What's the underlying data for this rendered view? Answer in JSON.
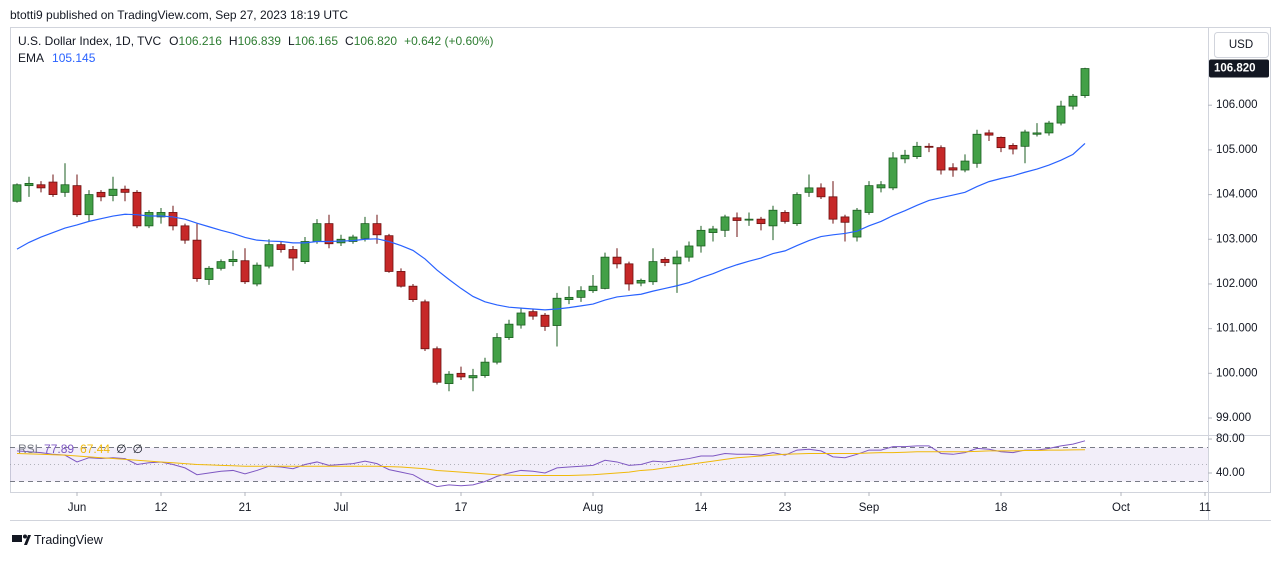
{
  "header": "btotti9 published on TradingView.com, Sep 27, 2023 18:19 UTC",
  "footer": "TradingView",
  "chart_data": [
    {
      "type": "candlestick",
      "legend": {
        "title": "U.S. Dollar Index, 1D, TVC",
        "ohlc": [
          [
            "O",
            "106.216"
          ],
          [
            "H",
            "106.839"
          ],
          [
            "L",
            "106.165"
          ],
          [
            "C",
            "106.820"
          ]
        ],
        "change": "+0.642 (+0.60%)",
        "ema_title": "EMA",
        "ema_value": "105.145"
      },
      "currency": "USD",
      "last_value_label": "106.820",
      "categories": [
        "2023-05-25",
        "2023-05-26",
        "2023-05-29",
        "2023-05-30",
        "2023-05-31",
        "2023-06-01",
        "2023-06-02",
        "2023-06-05",
        "2023-06-06",
        "2023-06-07",
        "2023-06-08",
        "2023-06-09",
        "2023-06-12",
        "2023-06-13",
        "2023-06-14",
        "2023-06-15",
        "2023-06-16",
        "2023-06-19",
        "2023-06-20",
        "2023-06-21",
        "2023-06-22",
        "2023-06-23",
        "2023-06-26",
        "2023-06-27",
        "2023-06-28",
        "2023-06-29",
        "2023-06-30",
        "2023-07-03",
        "2023-07-04",
        "2023-07-05",
        "2023-07-06",
        "2023-07-07",
        "2023-07-10",
        "2023-07-11",
        "2023-07-12",
        "2023-07-13",
        "2023-07-14",
        "2023-07-17",
        "2023-07-18",
        "2023-07-19",
        "2023-07-20",
        "2023-07-21",
        "2023-07-24",
        "2023-07-25",
        "2023-07-26",
        "2023-07-27",
        "2023-07-28",
        "2023-07-31",
        "2023-08-01",
        "2023-08-02",
        "2023-08-03",
        "2023-08-04",
        "2023-08-07",
        "2023-08-08",
        "2023-08-09",
        "2023-08-10",
        "2023-08-11",
        "2023-08-14",
        "2023-08-15",
        "2023-08-16",
        "2023-08-17",
        "2023-08-18",
        "2023-08-21",
        "2023-08-22",
        "2023-08-23",
        "2023-08-24",
        "2023-08-25",
        "2023-08-28",
        "2023-08-29",
        "2023-08-30",
        "2023-08-31",
        "2023-09-01",
        "2023-09-04",
        "2023-09-05",
        "2023-09-06",
        "2023-09-07",
        "2023-09-08",
        "2023-09-11",
        "2023-09-12",
        "2023-09-13",
        "2023-09-14",
        "2023-09-15",
        "2023-09-18",
        "2023-09-19",
        "2023-09-20",
        "2023-09-21",
        "2023-09-22",
        "2023-09-25",
        "2023-09-26",
        "2023-09-27"
      ],
      "series": [
        {
          "up_color": "#43a047",
          "down_color": "#c62828",
          "up_border": "#1b5e20",
          "down_border": "#6d1010",
          "open": [
            103.85,
            104.2,
            104.22,
            104.28,
            104.05,
            104.2,
            103.55,
            104.05,
            103.98,
            104.12,
            104.05,
            103.3,
            103.5,
            103.6,
            103.3,
            102.98,
            102.1,
            102.35,
            102.5,
            102.52,
            102.0,
            102.4,
            102.88,
            102.77,
            102.5,
            102.95,
            103.35,
            102.92,
            102.95,
            103.02,
            103.35,
            103.08,
            102.28,
            101.95,
            101.6,
            100.55,
            99.77,
            100.0,
            99.9,
            99.95,
            100.25,
            100.8,
            101.08,
            101.38,
            101.3,
            101.07,
            101.65,
            101.7,
            101.85,
            101.9,
            102.6,
            102.45,
            102.02,
            102.05,
            102.55,
            102.45,
            102.6,
            102.85,
            103.15,
            103.2,
            103.48,
            103.43,
            103.45,
            103.3,
            103.6,
            103.35,
            104.05,
            104.15,
            103.95,
            103.5,
            103.05,
            103.6,
            104.15,
            104.15,
            104.8,
            104.85,
            105.08,
            105.05,
            104.6,
            104.55,
            104.7,
            105.38,
            105.28,
            105.1,
            105.08,
            105.35,
            105.38,
            105.6,
            105.98,
            106.216
          ],
          "high": [
            104.25,
            104.4,
            104.3,
            104.45,
            104.7,
            104.45,
            104.1,
            104.1,
            104.4,
            104.2,
            104.1,
            103.65,
            103.7,
            103.75,
            103.35,
            103.35,
            102.4,
            102.55,
            102.75,
            102.8,
            102.48,
            103.0,
            102.95,
            102.85,
            103.05,
            103.45,
            103.55,
            103.1,
            103.1,
            103.5,
            103.55,
            103.12,
            102.35,
            102.0,
            101.65,
            100.6,
            100.05,
            100.15,
            100.1,
            100.35,
            100.9,
            101.2,
            101.45,
            101.45,
            101.35,
            101.8,
            101.95,
            101.95,
            102.2,
            102.7,
            102.8,
            102.5,
            102.12,
            102.8,
            102.6,
            102.75,
            102.95,
            103.3,
            103.3,
            103.55,
            103.6,
            103.6,
            103.5,
            103.75,
            103.65,
            104.05,
            104.45,
            104.25,
            104.3,
            103.55,
            103.7,
            104.3,
            104.3,
            104.95,
            105.0,
            105.18,
            105.15,
            105.1,
            104.7,
            104.9,
            105.45,
            105.45,
            105.3,
            105.15,
            105.45,
            105.6,
            105.65,
            106.1,
            106.25,
            106.839
          ],
          "low": [
            103.82,
            103.95,
            104.05,
            103.95,
            103.95,
            103.5,
            103.4,
            103.85,
            103.85,
            103.85,
            103.25,
            103.25,
            103.35,
            103.2,
            102.9,
            102.05,
            101.98,
            102.3,
            102.4,
            102.0,
            101.95,
            102.35,
            102.7,
            102.3,
            102.45,
            102.9,
            102.8,
            102.85,
            102.9,
            102.95,
            102.9,
            102.25,
            101.92,
            101.6,
            100.5,
            99.75,
            99.6,
            99.85,
            99.6,
            99.9,
            100.2,
            100.75,
            101.0,
            101.2,
            100.95,
            100.6,
            101.55,
            101.6,
            101.8,
            101.88,
            102.35,
            101.85,
            101.95,
            101.98,
            102.4,
            101.8,
            102.5,
            102.7,
            102.95,
            103.05,
            103.05,
            103.3,
            103.2,
            102.98,
            103.35,
            103.3,
            103.95,
            103.9,
            103.35,
            102.95,
            102.95,
            103.55,
            104.05,
            104.1,
            104.7,
            104.8,
            104.95,
            104.45,
            104.4,
            104.5,
            104.6,
            105.2,
            104.95,
            104.9,
            104.7,
            105.3,
            105.32,
            105.55,
            105.9,
            106.165
          ],
          "close": [
            104.22,
            104.25,
            104.15,
            104.0,
            104.22,
            103.55,
            104.0,
            103.95,
            104.12,
            104.05,
            103.3,
            103.6,
            103.6,
            103.3,
            102.98,
            102.12,
            102.35,
            102.5,
            102.55,
            102.05,
            102.42,
            102.88,
            102.77,
            102.58,
            102.95,
            103.35,
            102.9,
            103.0,
            103.05,
            103.35,
            103.1,
            102.28,
            101.95,
            101.65,
            100.55,
            99.8,
            99.98,
            99.92,
            99.95,
            100.25,
            100.8,
            101.1,
            101.35,
            101.28,
            101.05,
            101.68,
            101.7,
            101.85,
            101.95,
            102.6,
            102.45,
            102.0,
            102.08,
            102.5,
            102.48,
            102.6,
            102.85,
            103.2,
            103.23,
            103.5,
            103.42,
            103.45,
            103.35,
            103.65,
            103.4,
            104.0,
            104.15,
            103.95,
            103.45,
            103.38,
            103.65,
            104.2,
            104.22,
            104.82,
            104.88,
            105.08,
            105.06,
            104.55,
            104.55,
            104.75,
            105.35,
            105.33,
            105.05,
            105.02,
            105.4,
            105.38,
            105.6,
            105.98,
            106.2,
            106.82
          ]
        },
        {
          "name": "EMA",
          "color": "#2962ff",
          "values": [
            102.78,
            102.93,
            103.05,
            103.15,
            103.25,
            103.32,
            103.4,
            103.46,
            103.52,
            103.56,
            103.55,
            103.52,
            103.52,
            103.5,
            103.45,
            103.36,
            103.28,
            103.2,
            103.13,
            103.04,
            102.98,
            102.96,
            102.95,
            102.92,
            102.92,
            102.95,
            102.95,
            102.96,
            102.97,
            103.0,
            103.01,
            102.95,
            102.86,
            102.75,
            102.56,
            102.31,
            102.1,
            101.9,
            101.72,
            101.6,
            101.53,
            101.48,
            101.46,
            101.44,
            101.42,
            101.44,
            101.47,
            101.51,
            101.55,
            101.64,
            101.71,
            101.74,
            101.77,
            101.84,
            101.9,
            101.96,
            102.03,
            102.14,
            102.23,
            102.34,
            102.43,
            102.51,
            102.58,
            102.68,
            102.74,
            102.86,
            102.97,
            103.06,
            103.1,
            103.13,
            103.18,
            103.3,
            103.4,
            103.53,
            103.64,
            103.76,
            103.87,
            103.93,
            103.99,
            104.05,
            104.18,
            104.29,
            104.36,
            104.42,
            104.5,
            104.57,
            104.66,
            104.77,
            104.9,
            105.145
          ]
        }
      ],
      "ylim": [
        98.62,
        107.75
      ],
      "yticks": [
        {
          "value": 99,
          "label": "99.000"
        },
        {
          "value": 100,
          "label": "100.000"
        },
        {
          "value": 101,
          "label": "101.000"
        },
        {
          "value": 102,
          "label": "102.000"
        },
        {
          "value": 103,
          "label": "103.000"
        },
        {
          "value": 104,
          "label": "104.000"
        },
        {
          "value": 105,
          "label": "105.000"
        },
        {
          "value": 106,
          "label": "106.000"
        }
      ],
      "xticks": [
        {
          "value": "2023-06-01",
          "label": "Jun"
        },
        {
          "value": "2023-06-12",
          "label": "12"
        },
        {
          "value": "2023-06-21",
          "label": "21"
        },
        {
          "value": "2023-07-03",
          "label": "Jul"
        },
        {
          "value": "2023-07-17",
          "label": "17"
        },
        {
          "value": "2023-08-01",
          "label": "Aug"
        },
        {
          "value": "2023-08-14",
          "label": "14"
        },
        {
          "value": "2023-08-23",
          "label": "23"
        },
        {
          "value": "2023-09-01",
          "label": "Sep"
        },
        {
          "value": "2023-09-18",
          "label": "18"
        },
        {
          "value": "2023-10-02",
          "label": "Oct"
        },
        {
          "value": "2023-10-11",
          "label": "11"
        }
      ],
      "grid": false
    },
    {
      "type": "line",
      "legend": {
        "title": "RSI",
        "values": [
          "77.89",
          "67.44",
          "∅",
          "∅"
        ]
      },
      "band": [
        30,
        70
      ],
      "band_color": "#7e57c2",
      "midline": 50,
      "series": [
        {
          "name": "RSI",
          "color": "#7e57c2",
          "values": [
            66,
            65,
            64,
            62,
            61,
            53,
            58,
            57,
            58,
            57,
            50,
            52,
            53,
            50,
            46,
            38,
            40,
            42,
            43,
            39,
            43,
            48,
            47,
            45,
            50,
            53,
            49,
            50,
            51,
            54,
            51,
            44,
            41,
            38,
            30,
            24,
            26,
            25,
            26,
            30,
            36,
            40,
            43,
            42,
            40,
            46,
            47,
            48,
            49,
            55,
            53,
            49,
            50,
            54,
            53,
            55,
            57,
            60,
            60,
            63,
            62,
            62,
            61,
            64,
            61,
            67,
            68,
            66,
            59,
            58,
            62,
            67,
            67,
            71,
            71,
            72,
            72,
            63,
            62,
            64,
            69,
            68,
            65,
            64,
            67,
            67,
            69,
            72,
            74,
            77.89
          ]
        },
        {
          "color": "#f0b90b",
          "values": [
            63,
            62.5,
            62,
            61.5,
            61,
            60,
            59,
            58,
            57,
            56,
            55,
            54,
            53,
            52,
            51,
            50,
            49.5,
            49,
            48.5,
            48,
            48,
            48,
            48,
            48,
            48,
            48,
            48,
            48,
            48,
            48,
            48,
            47.5,
            47,
            46,
            45,
            43,
            42,
            41,
            40,
            39,
            38,
            37.5,
            37,
            37,
            37,
            37,
            37,
            37.5,
            38,
            39,
            40,
            41,
            43,
            44,
            46,
            48,
            50,
            52,
            54,
            56,
            58,
            59,
            60,
            61,
            62,
            62.5,
            63,
            63,
            63,
            63,
            63,
            63.5,
            64,
            64,
            64.5,
            65,
            65,
            65,
            65,
            65,
            65.5,
            66,
            66,
            66,
            66.5,
            66.5,
            67,
            67,
            67.2,
            67.44
          ]
        }
      ],
      "ylim": [
        17.6,
        82.4
      ],
      "yticks": [
        {
          "value": 40,
          "label": "40.00"
        },
        {
          "value": 80,
          "label": "80.00"
        }
      ],
      "grid": false
    }
  ]
}
